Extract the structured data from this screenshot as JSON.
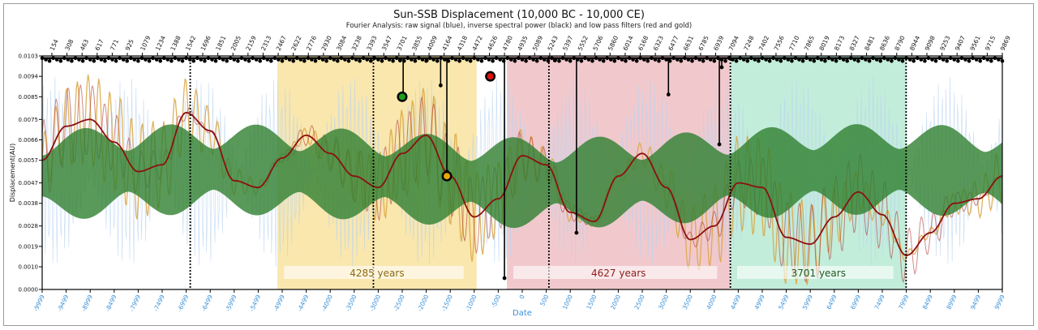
{
  "chart_data": {
    "type": "line",
    "title": "Sun-SSB Displacement (10,000 BC - 10,000 CE)",
    "subtitle": "Fourier Analysis: raw signal (blue), inverse spectral power (black) and low pass filters (red and gold)",
    "xlabel": "Date",
    "ylabel": "Displacement(AU)",
    "xlim": [
      -9999,
      9999
    ],
    "ylim": [
      0.0,
      0.0103
    ],
    "grid": false,
    "x_ticks": [
      "-9999",
      "-9499",
      "-8999",
      "-8499",
      "-7999",
      "-7499",
      "-6999",
      "-6499",
      "-5999",
      "-5499",
      "-4999",
      "-4499",
      "-4000",
      "-3500",
      "-3000",
      "-2500",
      "-2000",
      "-1500",
      "-1000",
      "-500",
      "0",
      "500",
      "1000",
      "1500",
      "2000",
      "2500",
      "3000",
      "3500",
      "4000",
      "4499",
      "4999",
      "5499",
      "5999",
      "6499",
      "6999",
      "7499",
      "7999",
      "8499",
      "8999",
      "9499",
      "9999"
    ],
    "y_ticks": [
      "0.0000",
      "0.0010",
      "0.0019",
      "0.0028",
      "0.0038",
      "0.0047",
      "0.0057",
      "0.0066",
      "0.0075",
      "0.0085",
      "0.0094",
      "0.0103"
    ],
    "top_ticks": [
      "154",
      "308",
      "463",
      "617",
      "771",
      "925",
      "1079",
      "1234",
      "1388",
      "1542",
      "1696",
      "1851",
      "2005",
      "2159",
      "2313",
      "2467",
      "2622",
      "2776",
      "2930",
      "3084",
      "3238",
      "3393",
      "3547",
      "3701",
      "3855",
      "4009",
      "4164",
      "4318",
      "4472",
      "4626",
      "4780",
      "4935",
      "5089",
      "5243",
      "5397",
      "5552",
      "5706",
      "5860",
      "6014",
      "6168",
      "6323",
      "6477",
      "6631",
      "6785",
      "6939",
      "7094",
      "7248",
      "7402",
      "7556",
      "7710",
      "7865",
      "8019",
      "8173",
      "8327",
      "8481",
      "8636",
      "8790",
      "8944",
      "9098",
      "9253",
      "9407",
      "9561",
      "9715",
      "9869"
    ],
    "shaded_regions": [
      {
        "x0": -5100,
        "x1": -950,
        "color": "#f8e3a0",
        "label": "4285 years",
        "label_color": "#8a6a10"
      },
      {
        "x0": -320,
        "x1": 4330,
        "color": "#eec0c4",
        "label": "4627 years",
        "label_color": "#8e1a1a"
      },
      {
        "x0": 4340,
        "x1": 8000,
        "color": "#b9ead5",
        "label": "3701 years",
        "label_color": "#1f5a1f"
      }
    ],
    "vertical_lines": [
      -6915,
      -3100,
      555,
      4335,
      7995
    ],
    "series": [
      {
        "color": "#2f7f2f",
        "values_desc": "raw displacement envelope (green band)"
      },
      {
        "color": "#8b1010"
      },
      {
        "color": "#d9a540"
      },
      {
        "color": "#111111"
      }
    ],
    "low_pass_red": {
      "x": [
        -9999,
        -9500,
        -9000,
        -8500,
        -8000,
        -7500,
        -7000,
        -6500,
        -6000,
        -5500,
        -5000,
        -4500,
        -4000,
        -3500,
        -3000,
        -2500,
        -2000,
        -1500,
        -1000,
        -500,
        0,
        500,
        1000,
        1500,
        2000,
        2500,
        3000,
        3500,
        4000,
        4500,
        5000,
        5500,
        6000,
        6500,
        7000,
        7500,
        8000,
        8500,
        9000,
        9500,
        9999
      ],
      "y": [
        0.0057,
        0.0072,
        0.0075,
        0.0065,
        0.0052,
        0.0055,
        0.0078,
        0.007,
        0.0048,
        0.0045,
        0.0058,
        0.0068,
        0.006,
        0.005,
        0.0045,
        0.006,
        0.0068,
        0.005,
        0.0032,
        0.004,
        0.0059,
        0.0055,
        0.0034,
        0.003,
        0.005,
        0.006,
        0.0045,
        0.0022,
        0.0028,
        0.0047,
        0.0045,
        0.0023,
        0.002,
        0.0032,
        0.0043,
        0.0033,
        0.0015,
        0.0025,
        0.0038,
        0.004,
        0.005
      ]
    },
    "markers": [
      {
        "x": -2500,
        "y": 0.0085,
        "color": "#1ea01e"
      },
      {
        "x": -1570,
        "y": 0.005,
        "color": "#e7a500"
      },
      {
        "x": -665,
        "y": 0.0094,
        "color": "#e01010"
      }
    ],
    "spectral_lines": [
      {
        "x": -2545,
        "y": 0.0101
      },
      {
        "x": -2480,
        "y": 0.0086
      },
      {
        "x": -1700,
        "y": 0.009
      },
      {
        "x": -1570,
        "y": 0.0052
      },
      {
        "x": -370,
        "y": 0.0005
      },
      {
        "x": 1130,
        "y": 0.0025
      },
      {
        "x": 3045,
        "y": 0.0086
      },
      {
        "x": 4105,
        "y": 0.0064
      },
      {
        "x": 4155,
        "y": 0.0098
      },
      {
        "x": 680,
        "y": 0.0101
      },
      {
        "x": -1990,
        "y": 0.0101
      }
    ]
  }
}
